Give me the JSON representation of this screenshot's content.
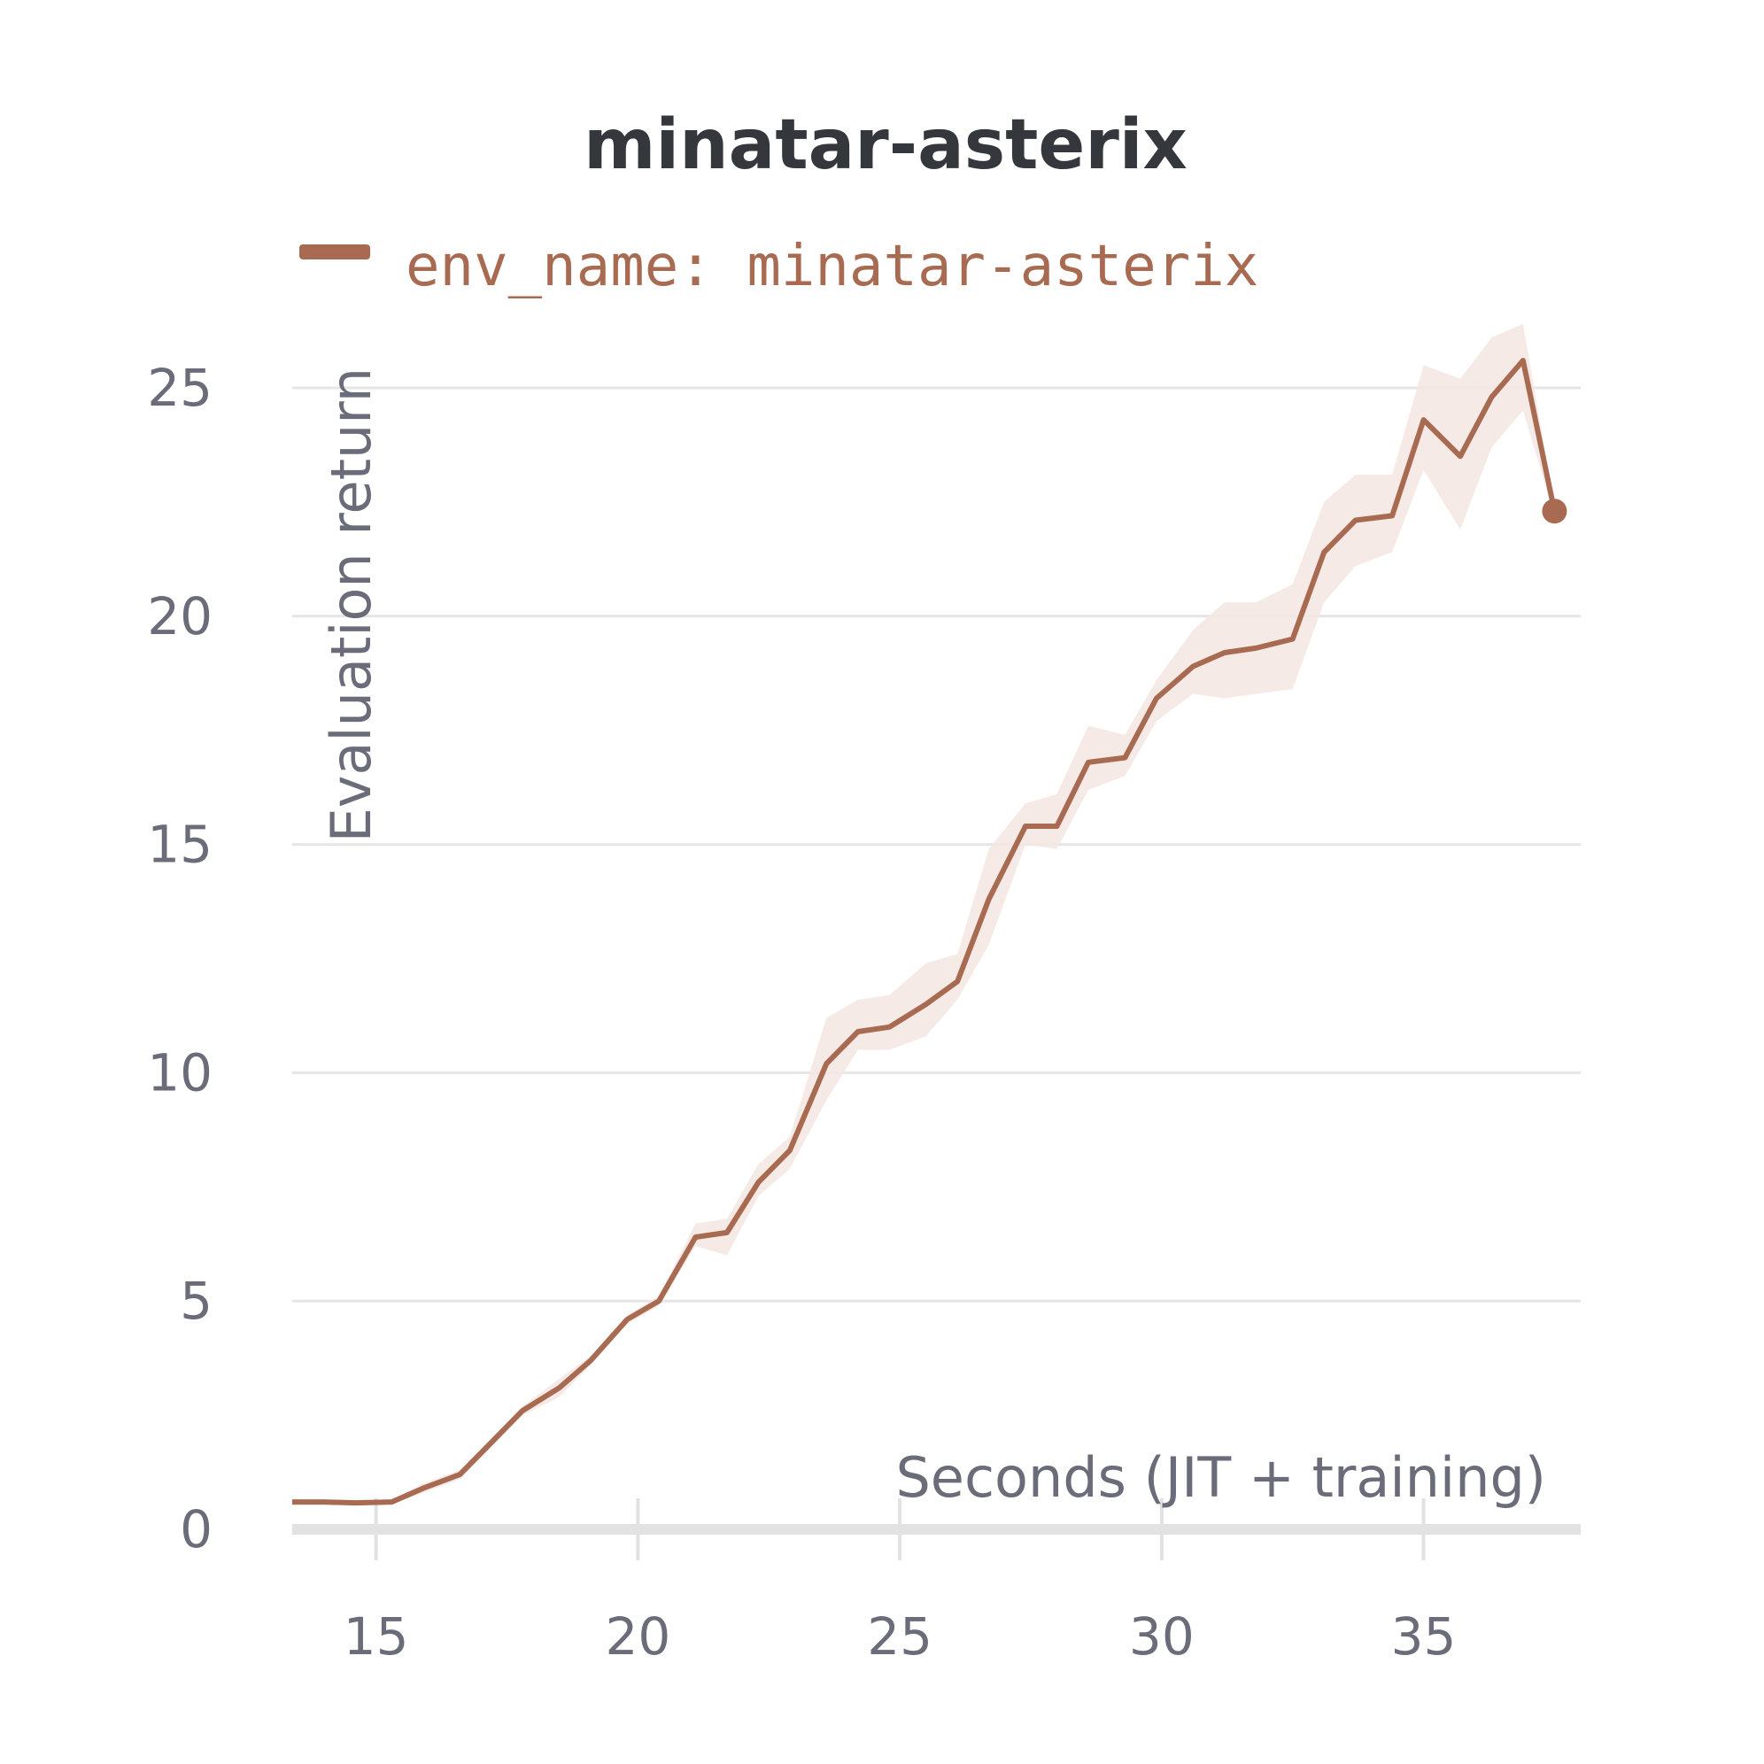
{
  "chart_data": {
    "type": "line",
    "title": "minatar-asterix",
    "xlabel": "Seconds (JIT + training)",
    "ylabel": "Evaluation return",
    "xlim": [
      13.4,
      38.0
    ],
    "ylim": [
      0,
      25
    ],
    "x_ticks": [
      15,
      20,
      25,
      30,
      35
    ],
    "y_ticks": [
      0,
      5,
      10,
      15,
      20,
      25
    ],
    "grid": "horizontal",
    "legend": {
      "placement": "top",
      "entries": [
        "env_name: minatar-asterix"
      ]
    },
    "colors": {
      "line": "#a86b52",
      "band": "#f3e6e2",
      "grid": "#e6e6e6",
      "axis": "#e2e2e2"
    },
    "series": [
      {
        "name": "env_name: minatar-asterix",
        "x": [
          13.4,
          14.0,
          14.6,
          15.3,
          15.9,
          16.6,
          17.2,
          17.8,
          18.5,
          19.1,
          19.8,
          20.4,
          21.1,
          21.7,
          22.3,
          22.9,
          23.6,
          24.2,
          24.8,
          25.5,
          26.1,
          26.7,
          27.4,
          28.0,
          28.6,
          29.3,
          29.9,
          30.6,
          31.2,
          31.8,
          32.5,
          33.1,
          33.7,
          34.4,
          35.0,
          35.7,
          36.3,
          36.9,
          37.5
        ],
        "y": [
          0.6,
          0.6,
          0.58,
          0.6,
          0.9,
          1.2,
          1.9,
          2.6,
          3.1,
          3.7,
          4.6,
          5.0,
          6.4,
          6.5,
          7.6,
          8.3,
          10.2,
          10.9,
          11.0,
          11.5,
          12.0,
          13.8,
          15.4,
          15.4,
          16.8,
          16.9,
          18.2,
          18.9,
          19.2,
          19.3,
          19.5,
          21.4,
          22.1,
          22.2,
          24.3,
          23.5,
          24.8,
          25.6,
          22.3
        ],
        "upper": [
          0.65,
          0.65,
          0.62,
          0.65,
          1.0,
          1.3,
          2.0,
          2.7,
          3.3,
          3.8,
          4.7,
          5.1,
          6.7,
          6.8,
          8.0,
          8.6,
          11.2,
          11.6,
          11.7,
          12.4,
          12.6,
          14.9,
          15.9,
          16.1,
          17.6,
          17.4,
          18.6,
          19.7,
          20.3,
          20.3,
          20.7,
          22.5,
          23.1,
          23.1,
          25.5,
          25.2,
          26.1,
          26.4,
          22.4
        ],
        "lower": [
          0.55,
          0.55,
          0.54,
          0.55,
          0.8,
          1.1,
          1.8,
          2.5,
          2.9,
          3.6,
          4.5,
          4.9,
          6.2,
          6.0,
          7.3,
          7.9,
          9.4,
          10.5,
          10.5,
          10.8,
          11.6,
          12.8,
          15.0,
          14.9,
          16.2,
          16.5,
          17.7,
          18.3,
          18.2,
          18.3,
          18.4,
          20.3,
          21.1,
          21.4,
          23.2,
          21.9,
          23.7,
          24.5,
          22.2
        ]
      }
    ]
  }
}
